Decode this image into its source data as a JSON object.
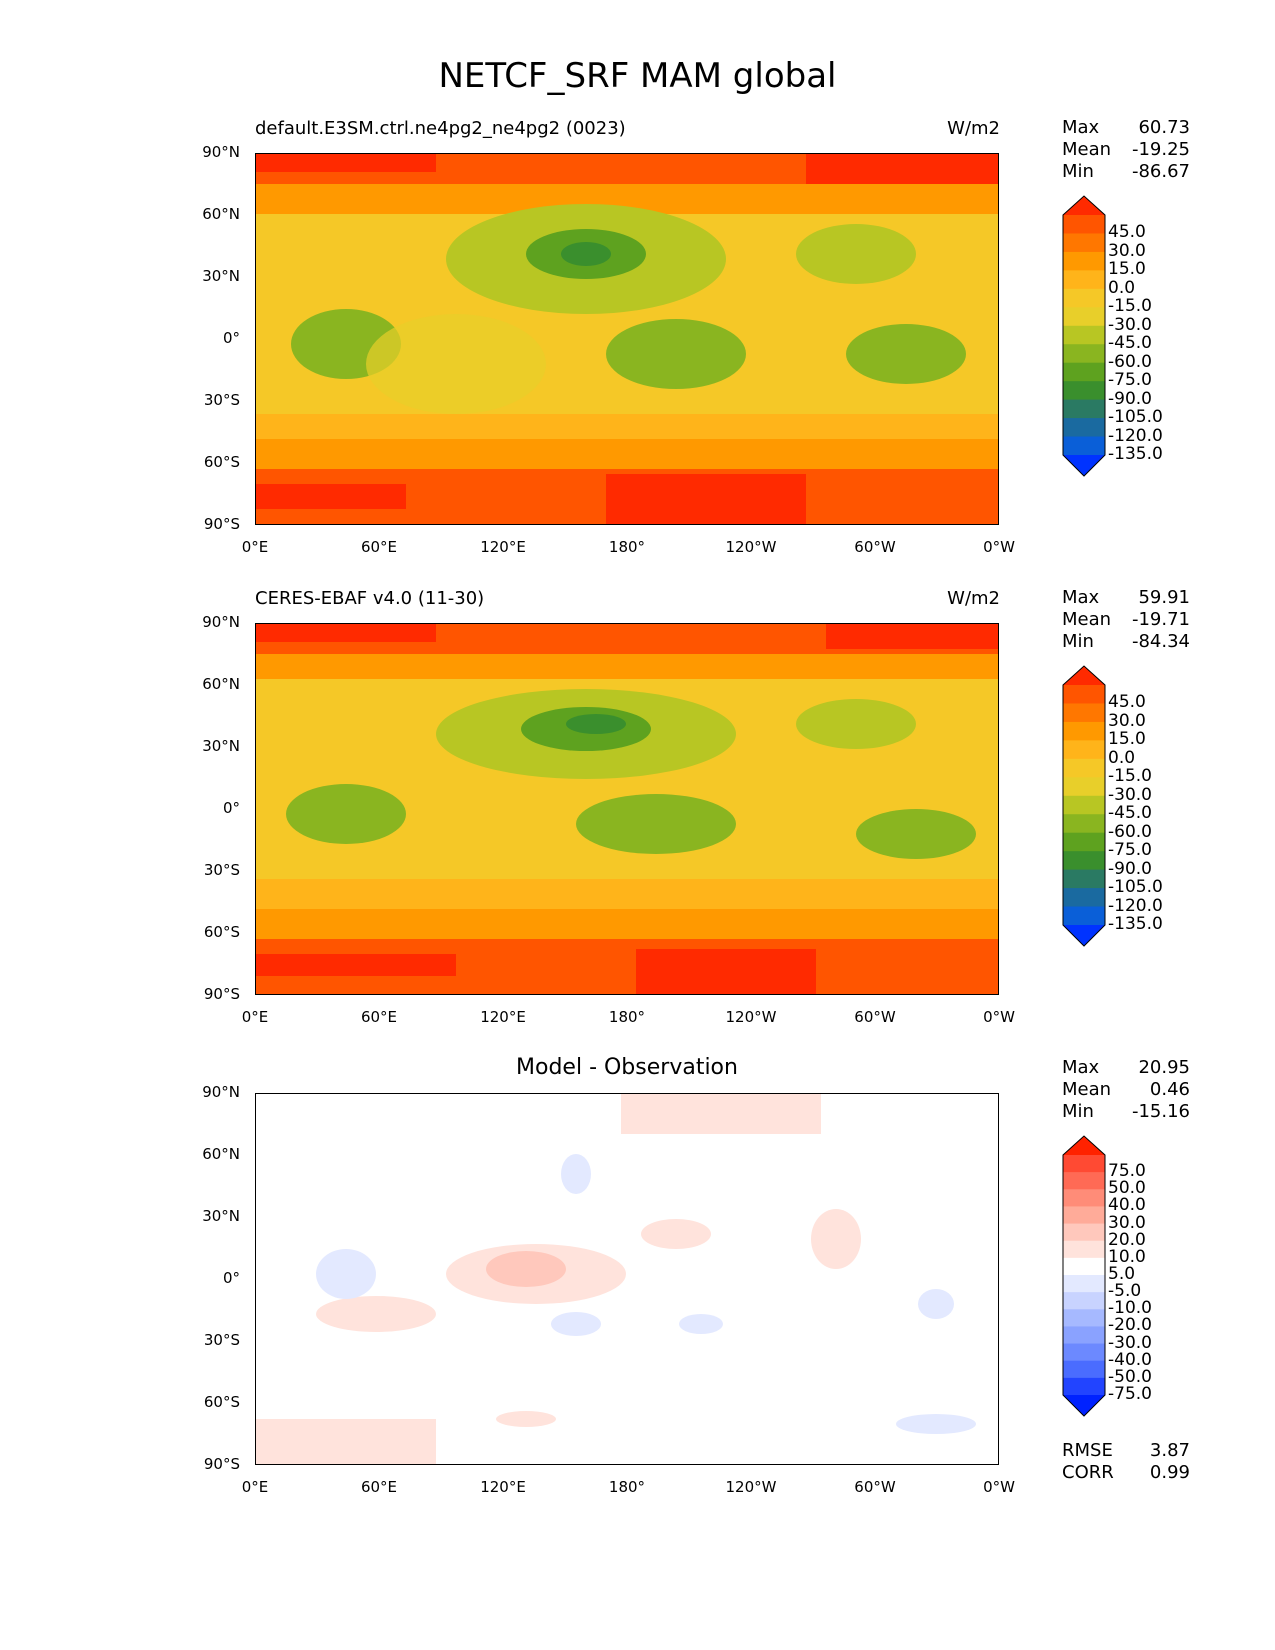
{
  "title": "NETCF_SRF MAM global",
  "units": "W/m2",
  "lat_ticks": [
    "90°N",
    "60°N",
    "30°N",
    "0°",
    "30°S",
    "60°S",
    "90°S"
  ],
  "lon_ticks": [
    "0°E",
    "60°E",
    "120°E",
    "180°",
    "120°W",
    "60°W",
    "0°W"
  ],
  "panels": [
    {
      "subtitle": "default.E3SM.ctrl.ne4pg2_ne4pg2 (0023)",
      "units": "W/m2",
      "stats": {
        "max_label": "Max",
        "max": "60.73",
        "mean_label": "Mean",
        "mean": "-19.25",
        "min_label": "Min",
        "min": "-86.67"
      }
    },
    {
      "subtitle": "CERES-EBAF v4.0 (11-30)",
      "units": "W/m2",
      "stats": {
        "max_label": "Max",
        "max": "59.91",
        "mean_label": "Mean",
        "mean": "-19.71",
        "min_label": "Min",
        "min": "-84.34"
      }
    },
    {
      "subtitle": "Model - Observation",
      "stats": {
        "max_label": "Max",
        "max": "20.95",
        "mean_label": "Mean",
        "mean": "0.46",
        "min_label": "Min",
        "min": "-15.16"
      },
      "rmse_label": "RMSE",
      "rmse": "3.87",
      "corr_label": "CORR",
      "corr": "0.99"
    }
  ],
  "colorbar_field": {
    "labels": [
      "45.0",
      "30.0",
      "15.0",
      "0.0",
      "-15.0",
      "-30.0",
      "-45.0",
      "-60.0",
      "-75.0",
      "-90.0",
      "-105.0",
      "-120.0",
      "-135.0"
    ],
    "colors": [
      "#ff2a00",
      "#ff5500",
      "#ff7700",
      "#ff9900",
      "#ffb41a",
      "#f5c827",
      "#e8cf2a",
      "#b8c623",
      "#8ab520",
      "#5ea21f",
      "#3a8f2d",
      "#2a7a63",
      "#1a6aa0",
      "#0a5fd8",
      "#0033ff"
    ]
  },
  "colorbar_diff": {
    "labels": [
      "75.0",
      "50.0",
      "40.0",
      "30.0",
      "20.0",
      "10.0",
      "5.0",
      "-5.0",
      "-10.0",
      "-20.0",
      "-30.0",
      "-40.0",
      "-50.0",
      "-75.0"
    ],
    "colors": [
      "#ff2200",
      "#ff4a33",
      "#ff6a55",
      "#ff8c78",
      "#ffab99",
      "#ffc8bc",
      "#ffe3dc",
      "#ffffff",
      "#e3e9ff",
      "#c8d3ff",
      "#a6b9ff",
      "#8aa2ff",
      "#6c89ff",
      "#4a6cff",
      "#2244ff",
      "#0022ff"
    ]
  }
}
